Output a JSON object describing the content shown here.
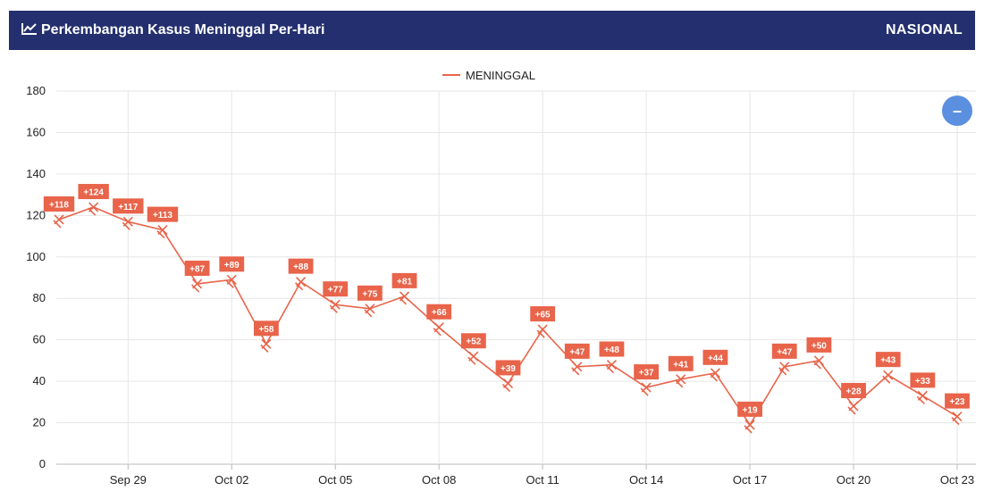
{
  "header": {
    "title": "Perkembangan Kasus Meninggal Per-Hari",
    "region": "NASIONAL",
    "icon": "line-chart-icon"
  },
  "zoom_button": {
    "label": "–",
    "icon": "zoom-out-icon",
    "color": "#5b8fe0"
  },
  "colors": {
    "header_bg": "#232f6e",
    "series": "#e8644a"
  },
  "chart_data": {
    "type": "line",
    "title": "",
    "xlabel": "",
    "ylabel": "",
    "ylim": [
      0,
      180
    ],
    "yticks": [
      0,
      20,
      40,
      60,
      80,
      100,
      120,
      140,
      160,
      180
    ],
    "x": [
      "Sep 27",
      "Sep 28",
      "Sep 29",
      "Sep 30",
      "Oct 01",
      "Oct 02",
      "Oct 03",
      "Oct 04",
      "Oct 05",
      "Oct 06",
      "Oct 07",
      "Oct 08",
      "Oct 09",
      "Oct 10",
      "Oct 11",
      "Oct 12",
      "Oct 13",
      "Oct 14",
      "Oct 15",
      "Oct 16",
      "Oct 17",
      "Oct 18",
      "Oct 19",
      "Oct 20",
      "Oct 21",
      "Oct 22",
      "Oct 23"
    ],
    "xtick_labels": [
      "Sep 29",
      "Oct 02",
      "Oct 05",
      "Oct 08",
      "Oct 11",
      "Oct 14",
      "Oct 17",
      "Oct 20",
      "Oct 23"
    ],
    "grid": true,
    "legend": "top-center",
    "series": [
      {
        "name": "MENINGGAL",
        "color": "#e8644a",
        "values": [
          118,
          124,
          117,
          113,
          87,
          89,
          58,
          88,
          77,
          75,
          81,
          66,
          52,
          39,
          65,
          47,
          48,
          37,
          41,
          44,
          19,
          47,
          50,
          28,
          43,
          33,
          23
        ],
        "data_labels": [
          "+118",
          "+124",
          "+117",
          "+113",
          "+87",
          "+89",
          "+58",
          "+88",
          "+77",
          "+75",
          "+81",
          "+66",
          "+52",
          "+39",
          "+65",
          "+47",
          "+48",
          "+37",
          "+41",
          "+44",
          "+19",
          "+47",
          "+50",
          "+28",
          "+43",
          "+33",
          "+23"
        ]
      }
    ]
  }
}
